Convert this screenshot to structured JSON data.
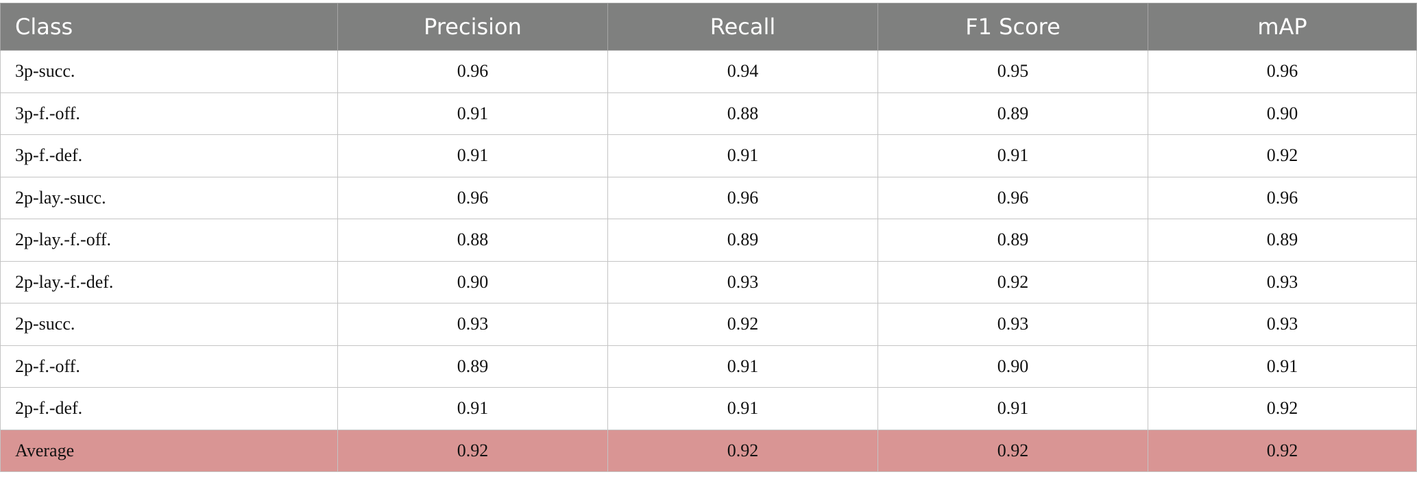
{
  "table": {
    "headers": [
      "Class",
      "Precision",
      "Recall",
      "F1 Score",
      "mAP"
    ],
    "rows": [
      {
        "class": "3p-succ.",
        "precision": "0.96",
        "recall": "0.94",
        "f1": "0.95",
        "map": "0.96"
      },
      {
        "class": "3p-f.-off.",
        "precision": "0.91",
        "recall": "0.88",
        "f1": "0.89",
        "map": "0.90"
      },
      {
        "class": "3p-f.-def.",
        "precision": "0.91",
        "recall": "0.91",
        "f1": "0.91",
        "map": "0.92"
      },
      {
        "class": "2p-lay.-succ.",
        "precision": "0.96",
        "recall": "0.96",
        "f1": "0.96",
        "map": "0.96"
      },
      {
        "class": "2p-lay.-f.-off.",
        "precision": "0.88",
        "recall": "0.89",
        "f1": "0.89",
        "map": "0.89"
      },
      {
        "class": "2p-lay.-f.-def.",
        "precision": "0.90",
        "recall": "0.93",
        "f1": "0.92",
        "map": "0.93"
      },
      {
        "class": "2p-succ.",
        "precision": "0.93",
        "recall": "0.92",
        "f1": "0.93",
        "map": "0.93"
      },
      {
        "class": "2p-f.-off.",
        "precision": "0.89",
        "recall": "0.91",
        "f1": "0.90",
        "map": "0.91"
      },
      {
        "class": "2p-f.-def.",
        "precision": "0.91",
        "recall": "0.91",
        "f1": "0.91",
        "map": "0.92"
      }
    ],
    "average": {
      "class": "Average",
      "precision": "0.92",
      "recall": "0.92",
      "f1": "0.92",
      "map": "0.92"
    }
  },
  "colors": {
    "header_bg": "#7f807f",
    "header_text": "#ffffff",
    "average_row_bg": "#d99594",
    "grid": "#c4c4c4"
  }
}
